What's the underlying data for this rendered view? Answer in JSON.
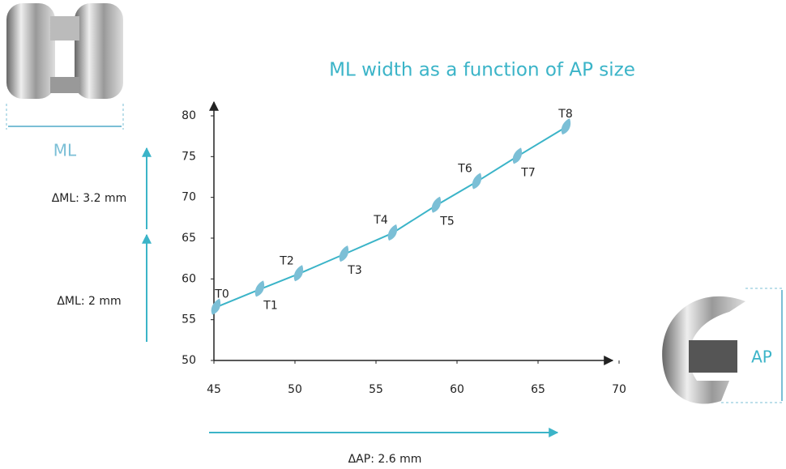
{
  "chart_data": {
    "type": "line",
    "title": "ML width as a function of AP size",
    "x": [
      45.1,
      47.8,
      50.2,
      53.0,
      56.0,
      58.7,
      61.2,
      63.7,
      66.7
    ],
    "series": [
      {
        "color": "#3bb4c8",
        "marker_color": "#7bbfd6",
        "values": [
          56.5,
          58.7,
          60.6,
          63.0,
          65.6,
          69.0,
          71.9,
          75.0,
          78.6
        ],
        "point_labels": [
          "T0",
          "T1",
          "T2",
          "T3",
          "T4",
          "T5",
          "T6",
          "T7",
          "T8"
        ]
      }
    ],
    "xlim": [
      45,
      70
    ],
    "xticks": [
      45,
      50,
      55,
      60,
      65,
      70
    ],
    "ylim": [
      50,
      80
    ],
    "yticks": [
      50,
      55,
      60,
      65,
      70,
      75,
      80
    ],
    "annotations": [
      "ΔML: 3.2 mm",
      "ΔML: 2 mm",
      "ΔAP: 2.6 mm",
      "ML",
      "AP"
    ]
  }
}
